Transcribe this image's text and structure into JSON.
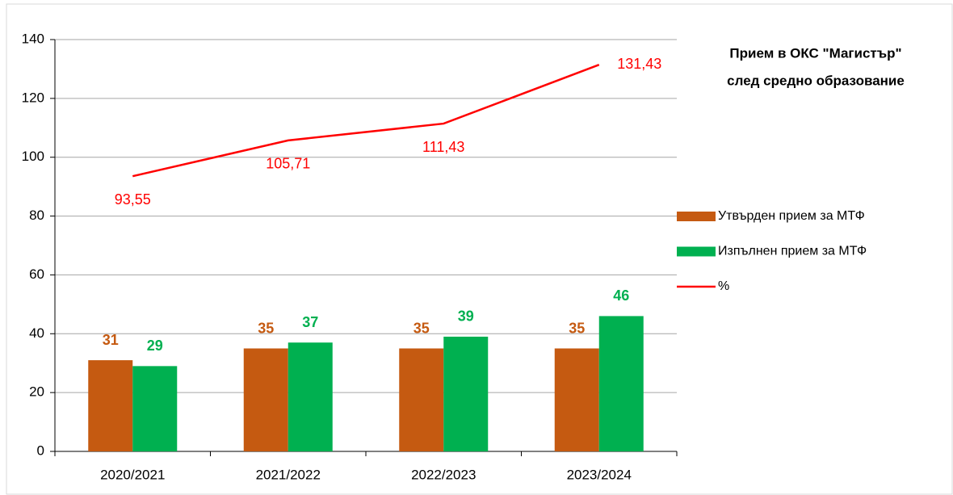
{
  "chart_data": {
    "type": "bar_line",
    "title": [
      "Прием в ОКС \"Магистър\"",
      "след средно образование"
    ],
    "categories": [
      "2020/2021",
      "2021/2022",
      "2022/2023",
      "2023/2024"
    ],
    "series": [
      {
        "name": "Утвърден прием за МТФ",
        "type": "bar",
        "color": "#c55a11",
        "values": [
          31,
          35,
          35,
          35
        ]
      },
      {
        "name": "Изпълнен прием за МТФ",
        "type": "bar",
        "color": "#00b050",
        "values": [
          29,
          37,
          39,
          46
        ]
      },
      {
        "name": "%",
        "type": "line",
        "color": "#ff0000",
        "values": [
          93.55,
          105.71,
          111.43,
          131.43
        ],
        "value_labels": [
          "93,55",
          "105,71",
          "111,43",
          "131,43"
        ]
      }
    ],
    "ylim": [
      0,
      140
    ],
    "yticks": [
      0,
      20,
      40,
      60,
      80,
      100,
      120,
      140
    ],
    "grid": true,
    "legend": "right"
  }
}
